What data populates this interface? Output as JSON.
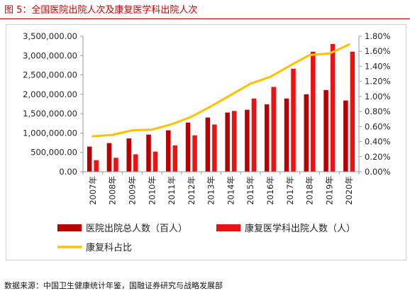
{
  "figure": {
    "caption": "图 5：全国医院出院人次及康复医学科出院人次",
    "source": "数据来源：中国卫生健康统计年鉴，国融证券研究与战略发展部"
  },
  "chart_data": {
    "type": "bar",
    "title": "",
    "categories": [
      "2007年",
      "2008年",
      "2009年",
      "2010年",
      "2011年",
      "2012年",
      "2013年",
      "2014年",
      "2015年",
      "2016年",
      "2017年",
      "2018年",
      "2019年",
      "2020年"
    ],
    "series": [
      {
        "name": "医院出院总人数（百人）",
        "kind": "bar",
        "axis": "left",
        "color": "#b80000",
        "values": [
          650000,
          740000,
          860000,
          960000,
          1070000,
          1270000,
          1400000,
          1530000,
          1600000,
          1740000,
          1890000,
          2000000,
          2110000,
          1840000
        ]
      },
      {
        "name": "康复医学科出院人数（人）",
        "kind": "bar",
        "axis": "left",
        "color": "#ee1111",
        "values": [
          300000,
          360000,
          450000,
          520000,
          680000,
          940000,
          1220000,
          1570000,
          1890000,
          2190000,
          2660000,
          3100000,
          3300000,
          3100000
        ]
      },
      {
        "name": "康复科占比",
        "kind": "line",
        "axis": "right",
        "color": "#ffc000",
        "values": [
          0.0047,
          0.0049,
          0.0055,
          0.0056,
          0.0063,
          0.0073,
          0.0087,
          0.0102,
          0.0117,
          0.0126,
          0.0141,
          0.0155,
          0.0157,
          0.0169
        ]
      }
    ],
    "y_left": {
      "min": 0,
      "max": 3500000,
      "step": 500000,
      "tick_labels": [
        "0.00",
        "500,000.00",
        "1,000,000.00",
        "1,500,000.00",
        "2,000,000.00",
        "2,500,000.00",
        "3,000,000.00",
        "3,500,000.00"
      ]
    },
    "y_right": {
      "min": 0,
      "max": 0.018,
      "step": 0.002,
      "tick_labels": [
        "0.00%",
        "0.20%",
        "0.40%",
        "0.60%",
        "0.80%",
        "1.00%",
        "1.20%",
        "1.40%",
        "1.60%",
        "1.80%"
      ]
    },
    "grid": false,
    "legend_position": "bottom"
  }
}
